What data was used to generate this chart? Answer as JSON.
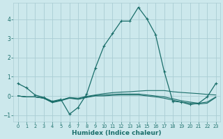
{
  "xlabel": "Humidex (Indice chaleur)",
  "background_color": "#cce8ec",
  "grid_color": "#aacdd4",
  "line_color": "#1a6e6a",
  "xlim": [
    -0.5,
    23.5
  ],
  "ylim": [
    -1.35,
    4.85
  ],
  "yticks": [
    -1,
    0,
    1,
    2,
    3,
    4
  ],
  "xticks": [
    0,
    1,
    2,
    3,
    4,
    5,
    6,
    7,
    8,
    9,
    10,
    11,
    12,
    13,
    14,
    15,
    16,
    17,
    18,
    19,
    20,
    21,
    22,
    23
  ],
  "s1_x": [
    0,
    1,
    2,
    3,
    4,
    5,
    6,
    7,
    8,
    9,
    10,
    11,
    12,
    13,
    14,
    15,
    16,
    17,
    18,
    19,
    20,
    21,
    22,
    23
  ],
  "s1_y": [
    0.65,
    0.42,
    0.05,
    -0.08,
    -0.28,
    -0.18,
    -0.95,
    -0.6,
    0.1,
    1.45,
    2.6,
    3.25,
    3.9,
    3.9,
    4.62,
    4.02,
    3.2,
    1.28,
    -0.28,
    -0.32,
    -0.45,
    -0.38,
    -0.05,
    0.65
  ],
  "s2_x": [
    0,
    1,
    2,
    3,
    4,
    5,
    6,
    7,
    8,
    9,
    10,
    11,
    12,
    13,
    14,
    15,
    16,
    17,
    18,
    19,
    20,
    21,
    22,
    23
  ],
  "s2_y": [
    0.0,
    -0.05,
    -0.05,
    -0.1,
    -0.3,
    -0.22,
    -0.08,
    -0.12,
    -0.02,
    0.05,
    0.12,
    0.17,
    0.2,
    0.22,
    0.25,
    0.28,
    0.28,
    0.28,
    0.22,
    0.18,
    0.15,
    0.12,
    0.08,
    0.05
  ],
  "s3_x": [
    0,
    1,
    2,
    3,
    4,
    5,
    6,
    7,
    8,
    9,
    10,
    11,
    12,
    13,
    14,
    15,
    16,
    17,
    18,
    19,
    20,
    21,
    22,
    23
  ],
  "s3_y": [
    0.0,
    -0.05,
    -0.05,
    -0.12,
    -0.32,
    -0.22,
    -0.1,
    -0.15,
    -0.05,
    0.02,
    0.05,
    0.08,
    0.1,
    0.1,
    0.1,
    0.05,
    0.0,
    -0.05,
    -0.15,
    -0.25,
    -0.32,
    -0.38,
    -0.32,
    -0.05
  ],
  "s4_x": [
    0,
    1,
    2,
    3,
    4,
    5,
    6,
    7,
    8,
    9,
    10,
    11,
    12,
    13,
    14,
    15,
    16,
    17,
    18,
    19,
    20,
    21,
    22,
    23
  ],
  "s4_y": [
    0.0,
    -0.05,
    -0.05,
    -0.12,
    -0.35,
    -0.25,
    -0.12,
    -0.18,
    -0.08,
    0.0,
    0.0,
    0.03,
    0.05,
    0.05,
    0.05,
    0.0,
    -0.05,
    -0.12,
    -0.22,
    -0.32,
    -0.38,
    -0.42,
    -0.38,
    -0.08
  ]
}
